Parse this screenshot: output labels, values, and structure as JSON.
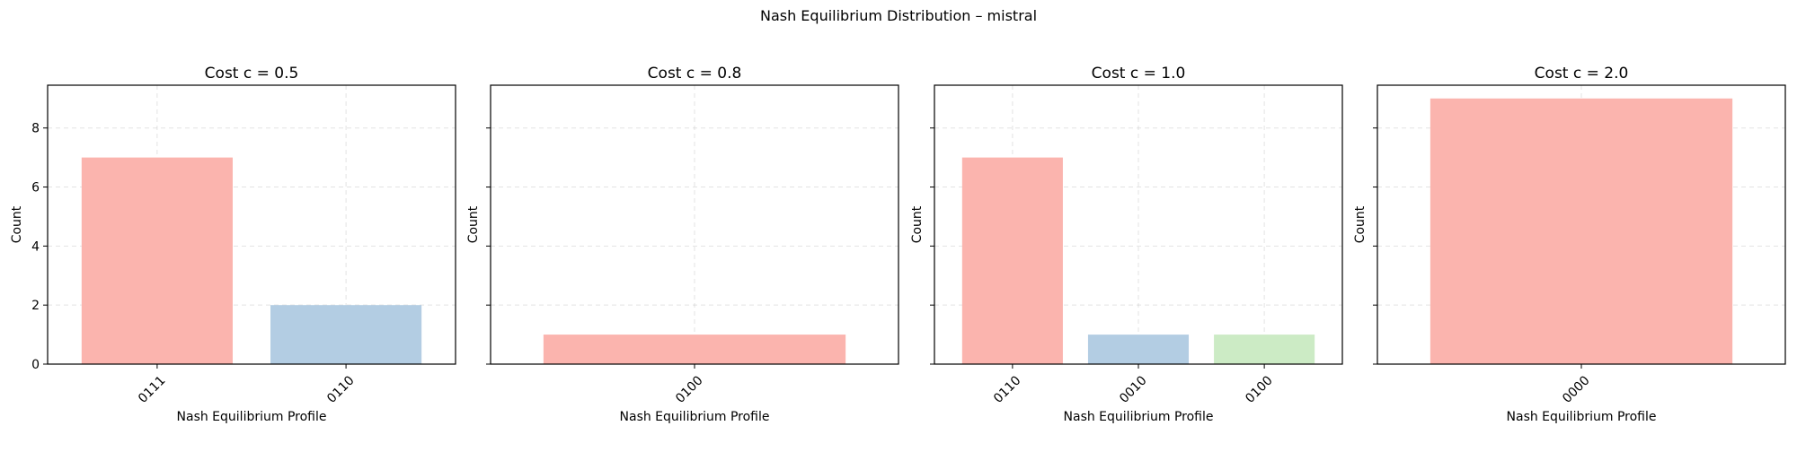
{
  "figure_title": "Nash Equilibrium Distribution – mistral",
  "chart_data": [
    {
      "type": "bar",
      "title": "Cost c = 0.5",
      "xlabel": "Nash Equilibrium Profile",
      "ylabel": "Count",
      "ylim": [
        0,
        9.45
      ],
      "yticks": [
        0,
        2,
        4,
        6,
        8
      ],
      "show_ytick_labels": true,
      "grid": true,
      "categories": [
        "0111",
        "0110"
      ],
      "values": [
        7,
        2
      ],
      "colors": [
        "#fbb4ae",
        "#b3cde3"
      ]
    },
    {
      "type": "bar",
      "title": "Cost c = 0.8",
      "xlabel": "Nash Equilibrium Profile",
      "ylabel": "Count",
      "ylim": [
        0,
        9.45
      ],
      "yticks": [
        0,
        2,
        4,
        6,
        8
      ],
      "show_ytick_labels": false,
      "grid": true,
      "categories": [
        "0100"
      ],
      "values": [
        1
      ],
      "colors": [
        "#fbb4ae"
      ]
    },
    {
      "type": "bar",
      "title": "Cost c = 1.0",
      "xlabel": "Nash Equilibrium Profile",
      "ylabel": "Count",
      "ylim": [
        0,
        9.45
      ],
      "yticks": [
        0,
        2,
        4,
        6,
        8
      ],
      "show_ytick_labels": false,
      "grid": true,
      "categories": [
        "0110",
        "0010",
        "0100"
      ],
      "values": [
        7,
        1,
        1
      ],
      "colors": [
        "#fbb4ae",
        "#b3cde3",
        "#ccebc5"
      ]
    },
    {
      "type": "bar",
      "title": "Cost c = 2.0",
      "xlabel": "Nash Equilibrium Profile",
      "ylabel": "Count",
      "ylim": [
        0,
        9.45
      ],
      "yticks": [
        0,
        2,
        4,
        6,
        8
      ],
      "show_ytick_labels": false,
      "grid": true,
      "categories": [
        "0000"
      ],
      "values": [
        9
      ],
      "colors": [
        "#fbb4ae"
      ]
    }
  ]
}
